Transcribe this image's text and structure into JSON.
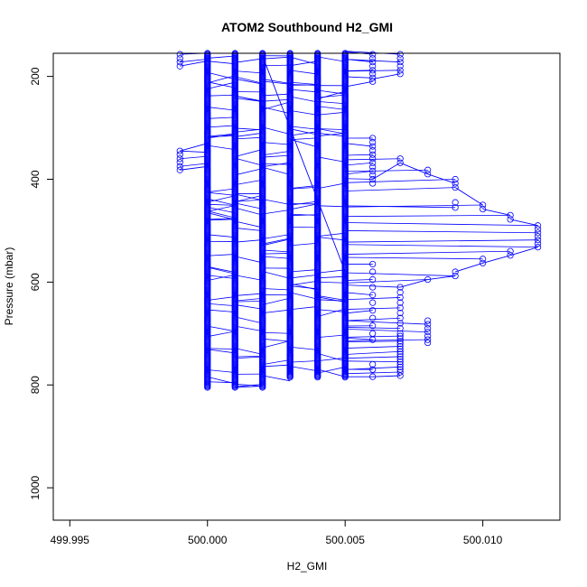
{
  "chart_data": {
    "type": "scatter",
    "title": "ATOM2 Southbound H2_GMI",
    "xlabel": "H2_GMI",
    "ylabel": "Pressure (mbar)",
    "xlim": [
      499.9944,
      500.0128
    ],
    "ylim": [
      1063,
      155
    ],
    "y_reversed": true,
    "x_ticks": [
      499.995,
      500.0,
      500.005,
      500.01
    ],
    "x_tick_labels": [
      "499.995",
      "500.000",
      "500.005",
      "500.010"
    ],
    "y_ticks": [
      200,
      400,
      600,
      800,
      1000
    ],
    "y_tick_labels": [
      "200",
      "400",
      "600",
      "800",
      "1000"
    ],
    "grid": false,
    "legend": "none",
    "series_color": "#0000ff",
    "series": [
      {
        "marker": "open-circle",
        "columns": [
          {
            "x": 500.0,
            "pmin": 155,
            "pmax": 805
          },
          {
            "x": 500.001,
            "pmin": 155,
            "pmax": 805
          },
          {
            "x": 500.002,
            "pmin": 155,
            "pmax": 805
          },
          {
            "x": 500.003,
            "pmin": 155,
            "pmax": 785
          },
          {
            "x": 500.004,
            "pmin": 155,
            "pmax": 785
          },
          {
            "x": 500.005,
            "pmin": 155,
            "pmax": 785
          }
        ],
        "scattered": [
          {
            "x": 499.999,
            "p": [
              157,
              165,
              172,
              180,
              345,
              352,
              360,
              367,
              375,
              382
            ]
          },
          {
            "x": 500.006,
            "p": [
              157,
              165,
              172,
              180,
              188,
              195,
              203,
              210,
              320,
              328,
              336,
              344,
              352,
              360,
              368,
              376,
              384,
              392,
              400,
              408,
              565,
              580,
              595,
              610,
              625,
              640,
              655,
              670,
              685,
              700,
              712,
              760,
              770,
              784
            ]
          },
          {
            "x": 500.007,
            "p": [
              157,
              165,
              172,
              180,
              188,
              195,
              360,
              368,
              610,
              620,
              630,
              640,
              650,
              660,
              670,
              680,
              690,
              700,
              705,
              710,
              715,
              720,
              725,
              730,
              735,
              740,
              745,
              750,
              755,
              760,
              765,
              770,
              775,
              782
            ]
          },
          {
            "x": 500.008,
            "p": [
              382,
              390,
              595,
              675,
              682,
              690,
              697,
              705,
              712,
              718
            ]
          },
          {
            "x": 500.009,
            "p": [
              400,
              408,
              416,
              445,
              455,
              580,
              588
            ]
          },
          {
            "x": 500.01,
            "p": [
              450,
              458,
              555,
              563
            ]
          },
          {
            "x": 500.011,
            "p": [
              470,
              478,
              540,
              548
            ]
          },
          {
            "x": 500.012,
            "p": [
              490,
              497,
              504,
              511,
              518,
              525,
              532
            ]
          }
        ],
        "connecting_segments": [
          {
            "x1": 500.006,
            "p1": 400,
            "x2": 500.007,
            "p2": 368
          },
          {
            "x1": 500.007,
            "p1": 368,
            "x2": 500.008,
            "p2": 390
          },
          {
            "x1": 500.008,
            "p1": 390,
            "x2": 500.009,
            "p2": 408
          },
          {
            "x1": 500.009,
            "p1": 416,
            "x2": 500.01,
            "p2": 450
          },
          {
            "x1": 500.01,
            "p1": 458,
            "x2": 500.011,
            "p2": 470
          },
          {
            "x1": 500.011,
            "p1": 478,
            "x2": 500.012,
            "p2": 490
          },
          {
            "x1": 500.012,
            "p1": 532,
            "x2": 500.011,
            "p2": 548
          },
          {
            "x1": 500.011,
            "p1": 548,
            "x2": 500.01,
            "p2": 563
          },
          {
            "x1": 500.01,
            "p1": 563,
            "x2": 500.009,
            "p2": 580
          },
          {
            "x1": 500.009,
            "p1": 588,
            "x2": 500.008,
            "p2": 595
          },
          {
            "x1": 500.008,
            "p1": 595,
            "x2": 500.007,
            "p2": 610
          },
          {
            "x1": 500.002,
            "p1": 160,
            "x2": 500.005,
            "p2": 580
          },
          {
            "x1": 499.999,
            "p1": 345,
            "x2": 500.0,
            "p2": 330
          },
          {
            "x1": 499.999,
            "p1": 382,
            "x2": 500.0,
            "p2": 375
          },
          {
            "x1": 499.999,
            "p1": 180,
            "x2": 500.0,
            "p2": 170
          },
          {
            "x1": 500.006,
            "p1": 210,
            "x2": 500.005,
            "p2": 220
          },
          {
            "x1": 500.007,
            "p1": 195,
            "x2": 500.006,
            "p2": 205
          },
          {
            "x1": 500.007,
            "p1": 782,
            "x2": 500.006,
            "p2": 784
          },
          {
            "x1": 500.006,
            "p1": 784,
            "x2": 500.005,
            "p2": 784
          },
          {
            "x1": 500.002,
            "p1": 802,
            "x2": 500.001,
            "p2": 805
          }
        ]
      }
    ]
  }
}
